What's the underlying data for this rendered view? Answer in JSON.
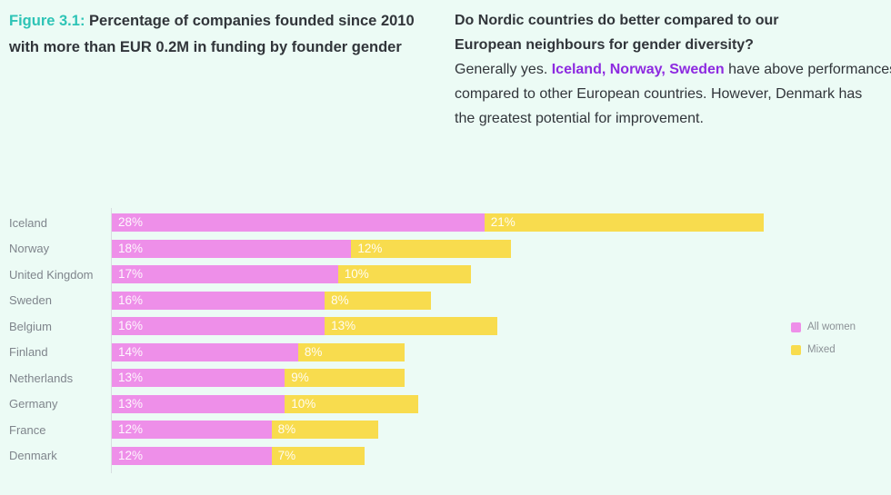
{
  "page": {
    "background": "#ecfbf5"
  },
  "header": {
    "figure_label": "Figure 3.1:",
    "title_line1": "Percentage of companies founded since 2010",
    "title_line2": "with more than EUR 0.2M in funding by founder gender"
  },
  "commentary": {
    "question_line1": "Do Nordic countries do better compared to our",
    "question_line2": "European neighbours for gender diversity?",
    "answer_line1_prefix": "Generally yes. ",
    "answer_line1_highlight": "Iceland, Norway, Sweden",
    "answer_line1_suffix": " have above performances",
    "answer_line2": "compared to other European countries. However, Denmark has",
    "answer_line3": "the greatest potential for improvement."
  },
  "chart_data": {
    "type": "bar",
    "orientation": "horizontal",
    "stacked": true,
    "title": "Percentage of companies founded since 2010 with more than EUR 0.2M in funding by founder gender",
    "categories": [
      "Iceland",
      "Norway",
      "United Kingdom",
      "Sweden",
      "Belgium",
      "Finland",
      "Netherlands",
      "Germany",
      "France",
      "Denmark"
    ],
    "series": [
      {
        "name": "All women",
        "color": "#ee8fe9",
        "values": [
          28,
          18,
          17,
          16,
          16,
          14,
          13,
          13,
          12,
          12
        ]
      },
      {
        "name": "Mixed",
        "color": "#f8dc4e",
        "values": [
          21,
          12,
          10,
          8,
          13,
          8,
          9,
          10,
          8,
          7
        ]
      }
    ],
    "value_suffix": "%",
    "xmax": 49,
    "grid": false,
    "legend_position": "right",
    "bar_label_color": "#ffffff"
  },
  "colors": {
    "accent_teal": "#2ec4b6",
    "accent_purple": "#8d2ae0",
    "text_dark": "#31353a",
    "label_gray": "#7f858c",
    "axis_line": "#d8dde0"
  }
}
